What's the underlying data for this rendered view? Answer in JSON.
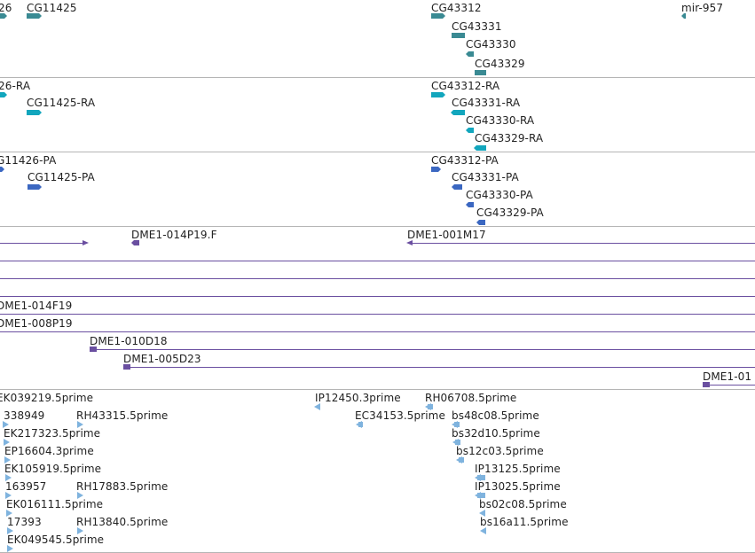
{
  "colors": {
    "gene": "#3a8a93",
    "transcript": "#12a6bd",
    "protein": "#3b67c1",
    "bac": "#6a4fa0",
    "est": "#7fb3de",
    "separator": "#b5b5b5"
  },
  "tracks": {
    "genes": {
      "labels": [
        "26",
        "CG11425",
        "CG43312",
        "CG43331",
        "CG43330",
        "CG43329",
        "mir-957"
      ]
    },
    "transcripts": {
      "labels": [
        "26-RA",
        "CG11425-RA",
        "CG43312-RA",
        "CG43331-RA",
        "CG43330-RA",
        "CG43329-RA"
      ]
    },
    "proteins": {
      "labels": [
        "G11426-PA",
        "CG11425-PA",
        "CG43312-PA",
        "CG43331-PA",
        "CG43330-PA",
        "CG43329-PA"
      ]
    },
    "bacs": {
      "labels": [
        "DME1-014P19.F",
        "DME1-001M17",
        "DME1-014F19",
        "DME1-008P19",
        "DME1-010D18",
        "DME1-005D23",
        "DME1-01"
      ]
    },
    "ests": {
      "labels": [
        "EK039219.5prime",
        "IP12450.3prime",
        "RH06708.5prime",
        "338949",
        "RH43315.5prime",
        "EC34153.5prime",
        "bs48c08.5prime",
        "EK217323.5prime",
        "bs32d10.5prime",
        "EP16604.3prime",
        "bs12c03.5prime",
        "EK105919.5prime",
        "IP13125.5prime",
        "163957",
        "RH17883.5prime",
        "IP13025.5prime",
        "EK016111.5prime",
        "bs02c08.5prime",
        "17393",
        "RH13840.5prime",
        "bs16a11.5prime",
        "EK049545.5prime"
      ]
    }
  }
}
